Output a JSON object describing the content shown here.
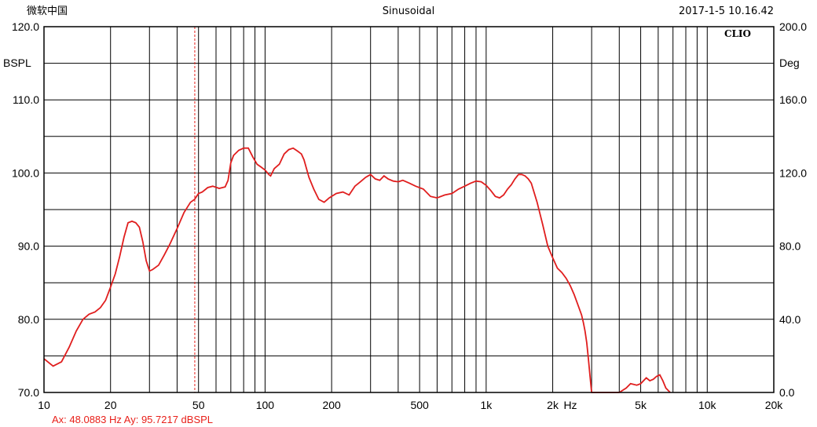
{
  "header": {
    "left_label": "微软中国",
    "title": "Sinusoidal",
    "timestamp": "2017-1-5 10.16.42"
  },
  "brand": "CLIO",
  "cursor": {
    "x_hz": 48.0883,
    "readout": "Ax: 48.0883 Hz  Ay: 95.7217 dBSPL"
  },
  "colors": {
    "curve": "#e01e1e",
    "cursor": "#e8201a",
    "grid": "#000000",
    "background": "#ffffff"
  },
  "chart_data": {
    "type": "line",
    "x_scale": "log",
    "xlim": [
      10,
      20000
    ],
    "ylim": [
      70,
      120
    ],
    "y2lim": [
      0,
      200
    ],
    "ylabel": "BSPL",
    "y2label": "Deg",
    "xlabel": "Hz",
    "grid": true,
    "y_ticks": [
      {
        "v": 70,
        "label": "70.0"
      },
      {
        "v": 80,
        "label": "80.0"
      },
      {
        "v": 90,
        "label": "90.0"
      },
      {
        "v": 100,
        "label": "100.0"
      },
      {
        "v": 110,
        "label": "110.0"
      },
      {
        "v": 120,
        "label": "120.0"
      }
    ],
    "y2_ticks": [
      {
        "v": 0,
        "label": "0.0"
      },
      {
        "v": 40,
        "label": "40.0"
      },
      {
        "v": 80,
        "label": "80.0"
      },
      {
        "v": 120,
        "label": "120.0"
      },
      {
        "v": 160,
        "label": "160.0"
      },
      {
        "v": 200,
        "label": "200.0"
      }
    ],
    "x_ticks": [
      {
        "v": 10,
        "label": "10"
      },
      {
        "v": 20,
        "label": "20"
      },
      {
        "v": 50,
        "label": "50"
      },
      {
        "v": 100,
        "label": "100"
      },
      {
        "v": 200,
        "label": "200"
      },
      {
        "v": 500,
        "label": "500"
      },
      {
        "v": 1000,
        "label": "1k"
      },
      {
        "v": 2000,
        "label": "2k"
      },
      {
        "v": 5000,
        "label": "5k"
      },
      {
        "v": 10000,
        "label": "10k"
      },
      {
        "v": 20000,
        "label": "20k"
      }
    ],
    "series": [
      {
        "x": [
          10,
          11,
          12,
          13,
          14,
          15,
          16,
          17,
          18,
          19,
          20,
          21,
          22,
          23,
          24,
          25,
          26,
          27,
          28,
          29,
          30,
          31,
          33,
          35,
          37,
          40,
          43,
          46,
          48,
          50,
          52,
          55,
          58,
          62,
          66,
          68,
          70,
          72,
          76,
          80,
          84,
          88,
          92,
          96,
          100,
          104,
          106,
          110,
          116,
          122,
          128,
          134,
          140,
          146,
          150,
          158,
          166,
          175,
          185,
          195,
          210,
          225,
          240,
          255,
          270,
          285,
          300,
          315,
          330,
          345,
          360,
          380,
          400,
          420,
          450,
          480,
          520,
          560,
          600,
          650,
          700,
          750,
          800,
          850,
          900,
          950,
          1000,
          1050,
          1100,
          1150,
          1200,
          1250,
          1300,
          1350,
          1400,
          1450,
          1500,
          1550,
          1600,
          1700,
          1800,
          1900,
          2000,
          2100,
          2200,
          2300,
          2400,
          2500,
          2600,
          2700,
          2750,
          2800,
          2850,
          2900,
          2950,
          3000,
          3500,
          3800,
          4000,
          4300,
          4500,
          4800,
          5000,
          5300,
          5500,
          5700,
          5900,
          6100,
          6300,
          6500,
          6800
        ],
        "y": [
          74.6,
          73.6,
          74.2,
          76.2,
          78.4,
          80.0,
          80.7,
          81.0,
          81.6,
          82.6,
          84.4,
          86.2,
          88.6,
          91.2,
          93.2,
          93.4,
          93.2,
          92.6,
          90.6,
          88.0,
          86.6,
          86.8,
          87.4,
          88.8,
          90.2,
          92.4,
          94.6,
          96.0,
          96.4,
          97.2,
          97.4,
          98.0,
          98.2,
          97.9,
          98.1,
          99.0,
          101.4,
          102.4,
          103.1,
          103.4,
          103.4,
          102.2,
          101.2,
          100.8,
          100.4,
          99.8,
          99.6,
          100.6,
          101.2,
          102.6,
          103.2,
          103.4,
          103.0,
          102.6,
          101.8,
          99.4,
          97.8,
          96.4,
          96.0,
          96.6,
          97.2,
          97.4,
          97.0,
          98.2,
          98.8,
          99.4,
          99.8,
          99.2,
          99.0,
          99.6,
          99.2,
          98.9,
          98.8,
          99.0,
          98.6,
          98.2,
          97.8,
          96.8,
          96.6,
          97.0,
          97.2,
          97.8,
          98.2,
          98.6,
          98.9,
          98.8,
          98.3,
          97.6,
          96.8,
          96.6,
          97.0,
          97.8,
          98.4,
          99.2,
          99.8,
          99.8,
          99.6,
          99.2,
          98.6,
          96.0,
          93.0,
          90.0,
          88.4,
          87.0,
          86.4,
          85.6,
          84.6,
          83.4,
          82.0,
          80.6,
          79.6,
          78.4,
          76.8,
          74.6,
          72.2,
          69.8,
          69.4,
          69.5,
          69.6,
          70.6,
          71.2,
          71.0,
          71.2,
          72.0,
          71.6,
          71.8,
          72.2,
          72.4,
          71.6,
          70.6,
          69.8
        ]
      }
    ]
  }
}
